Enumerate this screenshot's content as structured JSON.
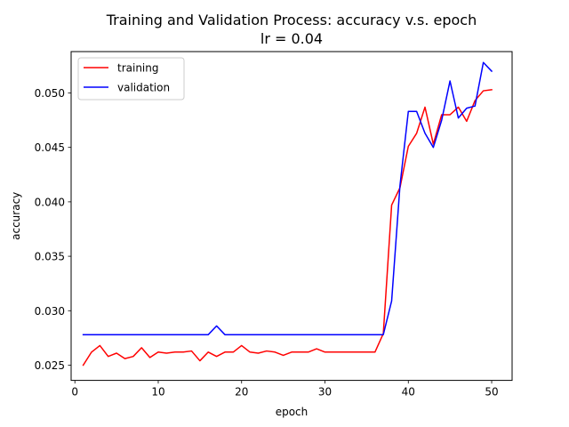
{
  "chart_data": {
    "type": "line",
    "title": "Training and Validation Process: accuracy v.s. epoch",
    "subtitle": "lr = 0.04",
    "xlabel": "epoch",
    "ylabel": "accuracy",
    "xlim": [
      -0.45,
      52.45
    ],
    "ylim": [
      0.0236,
      0.0538
    ],
    "xticks": [
      0,
      10,
      20,
      30,
      40,
      50
    ],
    "xtick_labels": [
      "0",
      "10",
      "20",
      "30",
      "40",
      "50"
    ],
    "yticks": [
      0.025,
      0.03,
      0.035,
      0.04,
      0.045,
      0.05
    ],
    "ytick_labels": [
      "0.025",
      "0.030",
      "0.035",
      "0.040",
      "0.045",
      "0.050"
    ],
    "grid": false,
    "legend_position": "upper-left",
    "x": [
      1,
      2,
      3,
      4,
      5,
      6,
      7,
      8,
      9,
      10,
      11,
      12,
      13,
      14,
      15,
      16,
      17,
      18,
      19,
      20,
      21,
      22,
      23,
      24,
      25,
      26,
      27,
      28,
      29,
      30,
      31,
      32,
      33,
      34,
      35,
      36,
      37,
      38,
      39,
      40,
      41,
      42,
      43,
      44,
      45,
      46,
      47,
      48,
      49,
      50
    ],
    "series": [
      {
        "name": "training",
        "color": "#ff0000",
        "values": [
          0.025,
          0.0262,
          0.0268,
          0.0258,
          0.0261,
          0.0256,
          0.0258,
          0.0266,
          0.0257,
          0.0262,
          0.0261,
          0.0262,
          0.0262,
          0.0263,
          0.0254,
          0.0262,
          0.0258,
          0.0262,
          0.0262,
          0.0268,
          0.0262,
          0.0261,
          0.0263,
          0.0262,
          0.0259,
          0.0262,
          0.0262,
          0.0262,
          0.0265,
          0.0262,
          0.0262,
          0.0262,
          0.0262,
          0.0262,
          0.0262,
          0.0262,
          0.0279,
          0.0397,
          0.0413,
          0.0451,
          0.0463,
          0.0487,
          0.0453,
          0.048,
          0.048,
          0.0487,
          0.0474,
          0.0493,
          0.0502,
          0.0503
        ]
      },
      {
        "name": "validation",
        "color": "#0000ff",
        "values": [
          0.0278,
          0.0278,
          0.0278,
          0.0278,
          0.0278,
          0.0278,
          0.0278,
          0.0278,
          0.0278,
          0.0278,
          0.0278,
          0.0278,
          0.0278,
          0.0278,
          0.0278,
          0.0278,
          0.0286,
          0.0278,
          0.0278,
          0.0278,
          0.0278,
          0.0278,
          0.0278,
          0.0278,
          0.0278,
          0.0278,
          0.0278,
          0.0278,
          0.0278,
          0.0278,
          0.0278,
          0.0278,
          0.0278,
          0.0278,
          0.0278,
          0.0278,
          0.0278,
          0.0309,
          0.0415,
          0.0483,
          0.0483,
          0.0463,
          0.045,
          0.0475,
          0.0511,
          0.0477,
          0.0486,
          0.0488,
          0.0528,
          0.052
        ]
      }
    ]
  }
}
